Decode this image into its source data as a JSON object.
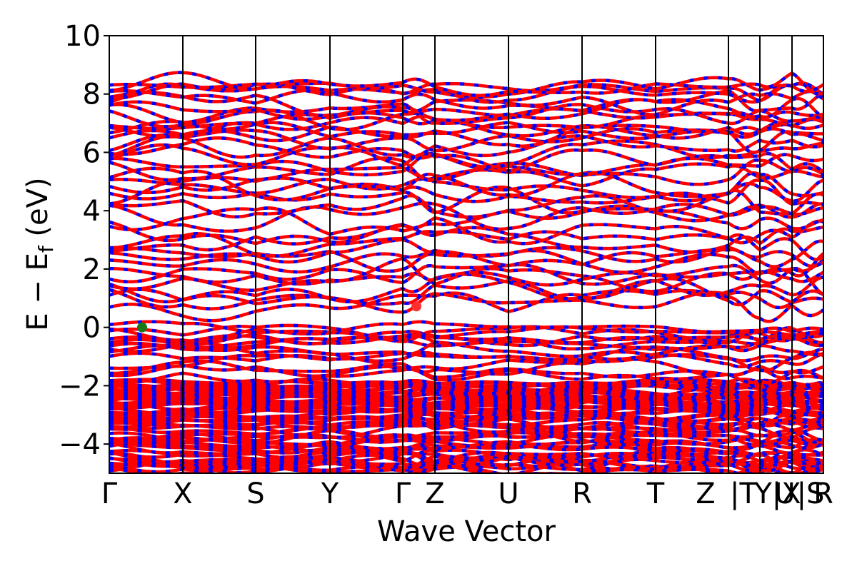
{
  "chart_data": {
    "type": "line",
    "title": "",
    "xlabel": "Wave Vector",
    "ylabel": "E − E_f (eV)",
    "ylabel_parts": {
      "main": "E − E",
      "sub": "f",
      "unit": "(eV)"
    },
    "ylim": [
      -5,
      10
    ],
    "yticks": [
      10,
      8,
      6,
      4,
      2,
      0,
      -2,
      -4
    ],
    "ytick_labels": [
      "10",
      "8",
      "6",
      "4",
      "2",
      "0",
      "−2",
      "−4"
    ],
    "x_range": [
      0,
      1
    ],
    "kpoint_positions": [
      0.0,
      0.103,
      0.205,
      0.309,
      0.411,
      0.456,
      0.559,
      0.662,
      0.765,
      0.867,
      0.911,
      0.956,
      1.0
    ],
    "kpoint_labels": [
      "Γ",
      "X",
      "S",
      "Y",
      "Γ",
      "Z",
      "U",
      "R",
      "T",
      "Z",
      "|T",
      "Y|X",
      "U",
      "|S",
      "R"
    ],
    "kpoint_label_positions": [
      0.0,
      0.103,
      0.205,
      0.309,
      0.411,
      0.456,
      0.559,
      0.662,
      0.765,
      0.835,
      0.888,
      0.936,
      0.946,
      0.982,
      1.0
    ],
    "grid": false,
    "series": [
      {
        "role": "spin-up",
        "color": "#ff0000",
        "style": "solid"
      },
      {
        "role": "spin-down",
        "color": "#0000ff",
        "style": "dashed"
      }
    ],
    "markers": [
      {
        "label": "VBM",
        "x": 0.046,
        "y": 0.0,
        "color": "#1a7a1a"
      },
      {
        "label": "CBM",
        "x": 0.43,
        "y": 0.72,
        "color": "#ff3030"
      }
    ],
    "bands": [
      {
        "n": 12,
        "y0": -4.9,
        "y1": -4.4,
        "amp": 0.25
      },
      {
        "n": 18,
        "y0": -4.2,
        "y1": -3.1,
        "amp": 0.22
      },
      {
        "n": 30,
        "y0": -3.0,
        "y1": -1.9,
        "amp": 0.18
      },
      {
        "n": 10,
        "y0": -1.7,
        "y1": -0.25,
        "amp": 0.25
      },
      {
        "n": 4,
        "y0": -0.5,
        "y1": 0.0,
        "amp": 0.2
      },
      {
        "n": 8,
        "y0": 0.75,
        "y1": 2.2,
        "amp": 0.45
      },
      {
        "n": 10,
        "y0": 2.3,
        "y1": 4.6,
        "amp": 0.45
      },
      {
        "n": 10,
        "y0": 4.7,
        "y1": 6.6,
        "amp": 0.4
      },
      {
        "n": 12,
        "y0": 6.7,
        "y1": 8.4,
        "amp": 0.35
      }
    ]
  }
}
